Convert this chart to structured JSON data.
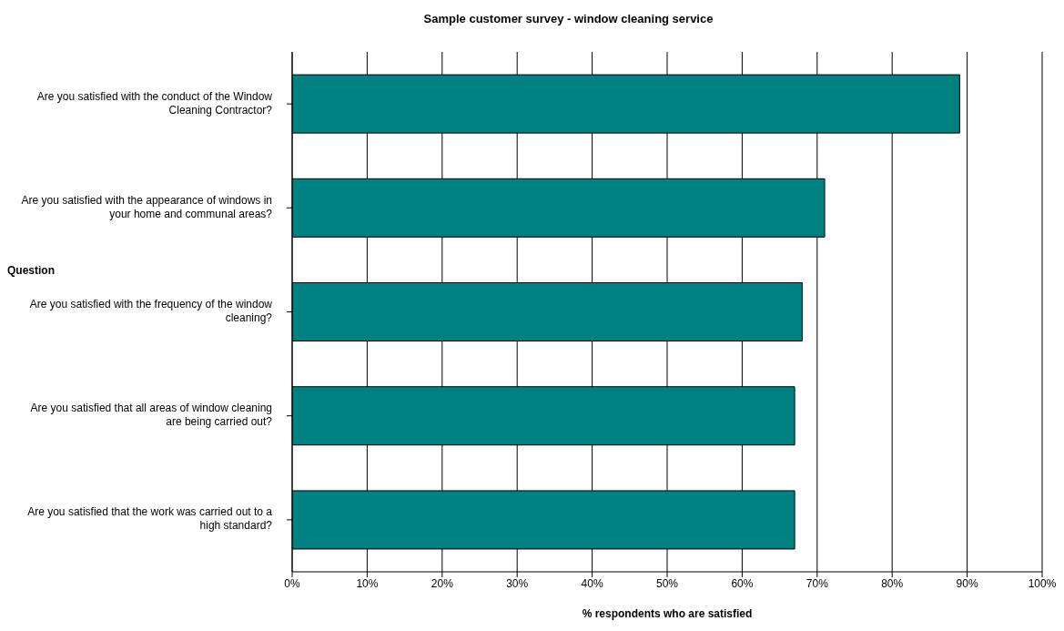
{
  "chart_data": {
    "type": "bar",
    "orientation": "horizontal",
    "title": "Sample customer survey - window cleaning service",
    "xlabel": "% respondents who are satisfied",
    "ylabel": "Question",
    "categories": [
      "Are you satisfied with the conduct of the Window Cleaning Contractor?",
      "Are you satisfied with the appearance of windows in your home and communal areas?",
      "Are you satisfied with the frequency of the window cleaning?",
      "Are you satisfied that all areas of window cleaning are being carried out?",
      "Are you satisfied that the work was carried out to a high standard?"
    ],
    "values": [
      89,
      71,
      68,
      67,
      67
    ],
    "color": "#008080",
    "xlim": [
      0,
      100
    ],
    "xticks": [
      {
        "value": 0,
        "label": "0%"
      },
      {
        "value": 10,
        "label": "10%"
      },
      {
        "value": 20,
        "label": "20%"
      },
      {
        "value": 30,
        "label": "30%"
      },
      {
        "value": 40,
        "label": "40%"
      },
      {
        "value": 50,
        "label": "50%"
      },
      {
        "value": 60,
        "label": "60%"
      },
      {
        "value": 70,
        "label": "70%"
      },
      {
        "value": 80,
        "label": "80%"
      },
      {
        "value": 90,
        "label": "90%"
      },
      {
        "value": 100,
        "label": "100%"
      }
    ],
    "grid": "x"
  }
}
